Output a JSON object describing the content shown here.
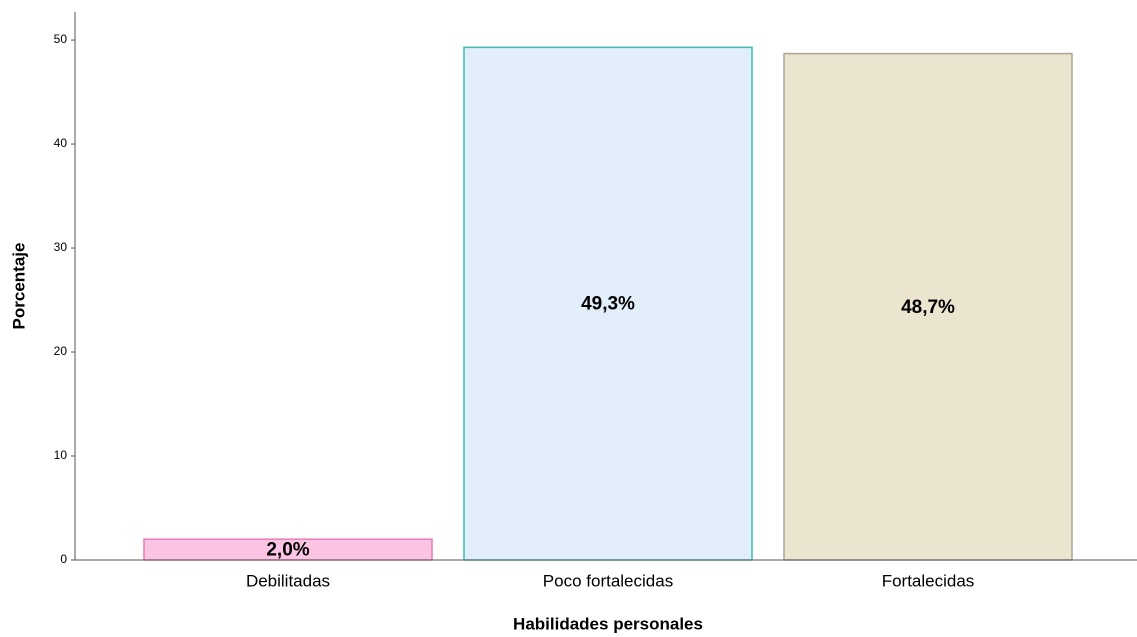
{
  "chart_data": {
    "type": "bar",
    "x_label": "Habilidades personales",
    "y_label": "Porcentaje",
    "categories": [
      "Debilitadas",
      "Poco fortalecidas",
      "Fortalecidas"
    ],
    "values": [
      2.0,
      49.3,
      48.7
    ],
    "value_labels": [
      "2,0%",
      "49,3%",
      "48,7%"
    ],
    "colors": [
      "#fcc4e4",
      "#e3eefb",
      "#ebe4cf"
    ],
    "edge_colors": [
      "#e87cb0",
      "#3dbdb0",
      "#a8a69a"
    ],
    "ylim": [
      0,
      52.7
    ],
    "yticks": [
      0,
      10,
      20,
      30,
      40,
      50
    ],
    "grid": false
  }
}
